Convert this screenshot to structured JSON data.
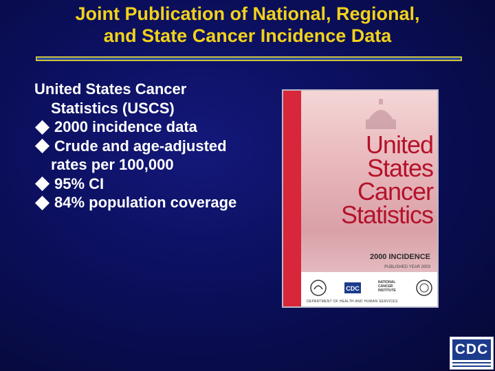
{
  "title": {
    "line1": "Joint Publication of National, Regional,",
    "line2": "and State Cancer Incidence Data"
  },
  "intro": "United States Cancer Statistics (USCS)",
  "bullets": [
    "2000 incidence data",
    "Crude and age-adjusted rates  per 100,000",
    "95% CI",
    "84% population coverage"
  ],
  "cover": {
    "title_lines": [
      "United",
      "States",
      "Cancer",
      "Statistics"
    ],
    "edition": "2000 INCIDENCE",
    "pub_line": "PUBLISHED YEAR 2003",
    "dept": "DEPARTMENT OF HEALTH AND HUMAN SERVICES",
    "logo_cdc": "CDC",
    "logo_nci": "NATIONAL CANCER INSTITUTE"
  },
  "corner_logo": {
    "text": "CDC"
  },
  "colors": {
    "background": "#0b0f5c",
    "title": "#f2d21a",
    "body_text": "#ffffff",
    "cover_accent": "#b4122a"
  }
}
